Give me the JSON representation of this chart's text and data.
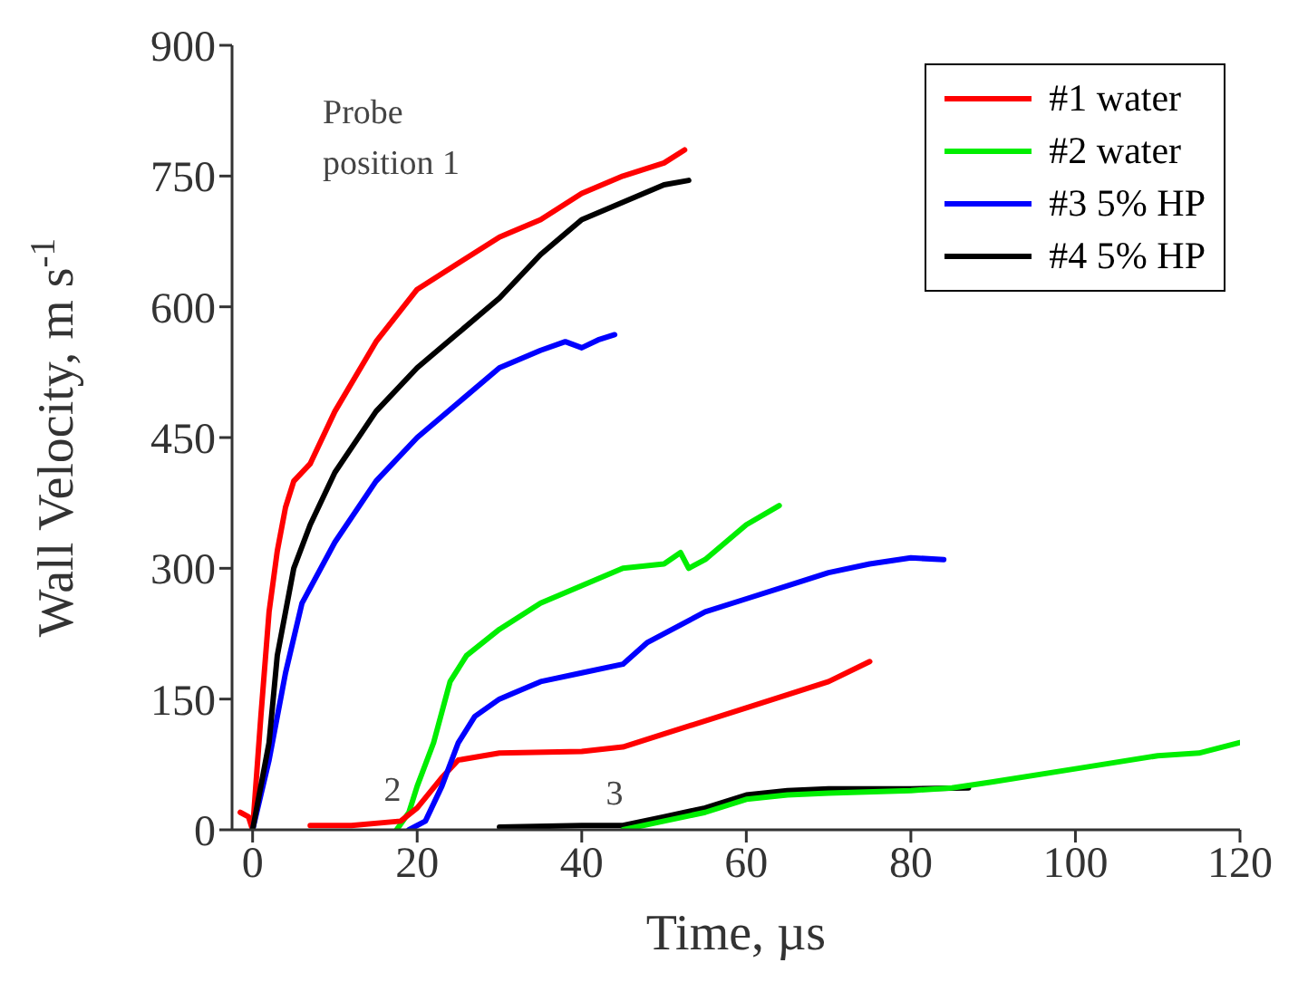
{
  "chart_data": {
    "type": "line",
    "xlabel": "Time, µs",
    "ylabel": "Wall Velocity, m s$^{-1}$",
    "xlim": [
      -2.5,
      120
    ],
    "xticks": [
      0,
      20,
      40,
      60,
      80,
      100,
      120
    ],
    "ylim": [
      0,
      900
    ],
    "yticks": [
      0,
      150,
      300,
      450,
      600,
      750,
      900
    ],
    "grid": false,
    "legend": "top right",
    "marker": "none",
    "line_style": "solid",
    "annotations": [
      "Probe position 1",
      {
        "text": "2",
        "x": 17,
        "y": 12
      },
      {
        "text": "3",
        "x": 44,
        "y": 8
      }
    ],
    "series": [
      {
        "name": "#1 water",
        "color": "#ff0000",
        "x": [
          -1.5,
          -0.5,
          0,
          1,
          2,
          3,
          4,
          5,
          7,
          10,
          15,
          20,
          25,
          30,
          35,
          40,
          45,
          50,
          52.5
        ],
        "values": [
          20,
          15,
          0,
          130,
          250,
          320,
          370,
          400,
          420,
          480,
          560,
          620,
          650,
          680,
          700,
          730,
          750,
          765,
          780
        ]
      },
      {
        "name": "#2 water",
        "color": "#00ee00",
        "x": [
          17.5,
          19,
          20,
          22,
          24,
          26,
          30,
          35,
          40,
          45,
          50,
          52,
          53,
          55,
          60,
          64
        ],
        "values": [
          0,
          20,
          50,
          100,
          170,
          200,
          230,
          260,
          280,
          300,
          305,
          318,
          300,
          310,
          350,
          372
        ]
      },
      {
        "name": "#3 5% HP",
        "color": "#0000ff",
        "x": [
          0,
          2,
          4,
          6,
          10,
          15,
          20,
          25,
          30,
          35,
          38,
          40,
          42,
          44
        ],
        "values": [
          0,
          80,
          180,
          260,
          330,
          400,
          450,
          490,
          530,
          550,
          560,
          553,
          562,
          568
        ]
      },
      {
        "name": "#4 5% HP",
        "color": "#000000",
        "x": [
          0,
          1,
          2,
          3,
          5,
          7,
          10,
          15,
          20,
          25,
          30,
          35,
          40,
          45,
          50,
          53
        ],
        "values": [
          0,
          50,
          100,
          200,
          300,
          350,
          410,
          480,
          530,
          570,
          610,
          660,
          700,
          720,
          740,
          745
        ]
      },
      {
        "color": "#ff0000",
        "x": [
          7,
          12,
          18,
          20,
          23,
          25,
          30,
          40,
          45,
          50,
          60,
          70,
          75
        ],
        "values": [
          5,
          5,
          10,
          25,
          60,
          80,
          88,
          90,
          95,
          110,
          140,
          170,
          193
        ]
      },
      {
        "color": "#0000ff",
        "x": [
          19,
          21,
          23,
          25,
          27,
          30,
          35,
          40,
          45,
          48,
          55,
          60,
          65,
          70,
          75,
          80,
          84
        ],
        "values": [
          0,
          10,
          50,
          100,
          130,
          150,
          170,
          180,
          190,
          215,
          250,
          265,
          280,
          295,
          305,
          312,
          310
        ]
      },
      {
        "color": "#000000",
        "x": [
          30,
          40,
          45,
          50,
          55,
          60,
          65,
          70,
          80,
          87
        ],
        "values": [
          3,
          5,
          5,
          15,
          25,
          40,
          45,
          47,
          47,
          48
        ]
      },
      {
        "color": "#00ee00",
        "x": [
          45,
          50,
          55,
          60,
          65,
          70,
          80,
          85,
          90,
          100,
          110,
          115,
          120
        ],
        "values": [
          0,
          10,
          20,
          35,
          40,
          42,
          45,
          48,
          55,
          70,
          85,
          88,
          100
        ]
      }
    ]
  }
}
